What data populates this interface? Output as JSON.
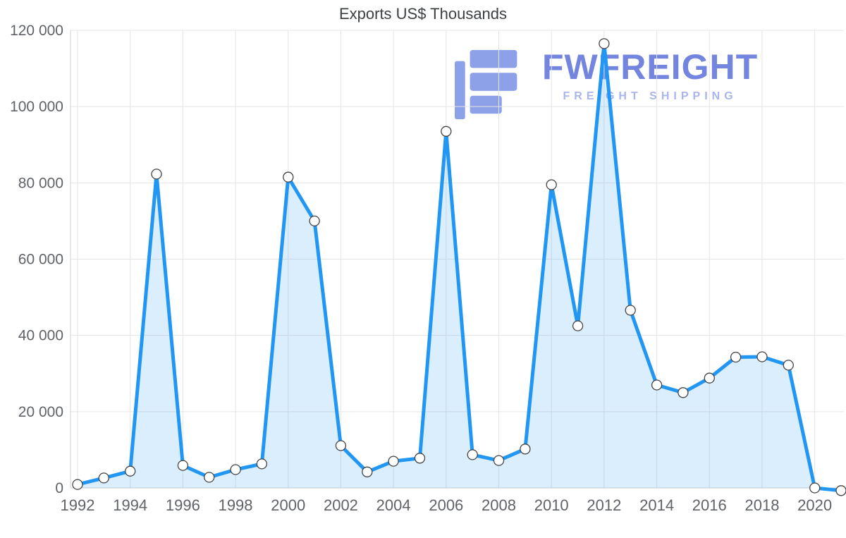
{
  "chart_data": {
    "type": "area",
    "title": "Exports US$ Thousands",
    "xlabel": "",
    "ylabel": "",
    "grid": true,
    "legend": "none",
    "x": [
      1992,
      1993,
      1994,
      1995,
      1996,
      1997,
      1998,
      1999,
      2000,
      2001,
      2002,
      2003,
      2004,
      2005,
      2006,
      2007,
      2008,
      2009,
      2010,
      2011,
      2012,
      2013,
      2014,
      2015,
      2016,
      2017,
      2018,
      2019,
      2020,
      2021
    ],
    "values": [
      900,
      2600,
      4400,
      82300,
      5900,
      2800,
      4800,
      6300,
      81500,
      70000,
      11100,
      4200,
      7000,
      7800,
      93500,
      8700,
      7200,
      10200,
      79500,
      42500,
      116500,
      46600,
      27000,
      25000,
      28800,
      34300,
      34400,
      32200,
      0,
      -700
    ],
    "ylim": [
      0,
      120000
    ],
    "y_ticks": [
      {
        "value": 0,
        "label": "0"
      },
      {
        "value": 20000,
        "label": "20 000"
      },
      {
        "value": 40000,
        "label": "40 000"
      },
      {
        "value": 60000,
        "label": "60 000"
      },
      {
        "value": 80000,
        "label": "80 000"
      },
      {
        "value": 100000,
        "label": "100 000"
      },
      {
        "value": 120000,
        "label": "120 000"
      }
    ],
    "x_tick_years": [
      1992,
      1994,
      1996,
      1998,
      2000,
      2002,
      2004,
      2006,
      2008,
      2010,
      2012,
      2014,
      2016,
      2018,
      2020
    ],
    "colors": {
      "line": "#2196f3",
      "fill": "rgba(33,150,243,0.16)",
      "marker_fill": "#ffffff",
      "marker_stroke": "#444444",
      "grid": "#e5e5e5",
      "axis": "#cfcfcf",
      "tick_text": "#5f6368",
      "title_text": "#3c4043"
    }
  },
  "watermark": {
    "title": "FWFREIGHT",
    "subtitle": "FREIGHT SHIPPING",
    "colors": {
      "logo": "#8da1e8",
      "title": "#7385de",
      "subtitle": "#a9b5ee"
    }
  }
}
